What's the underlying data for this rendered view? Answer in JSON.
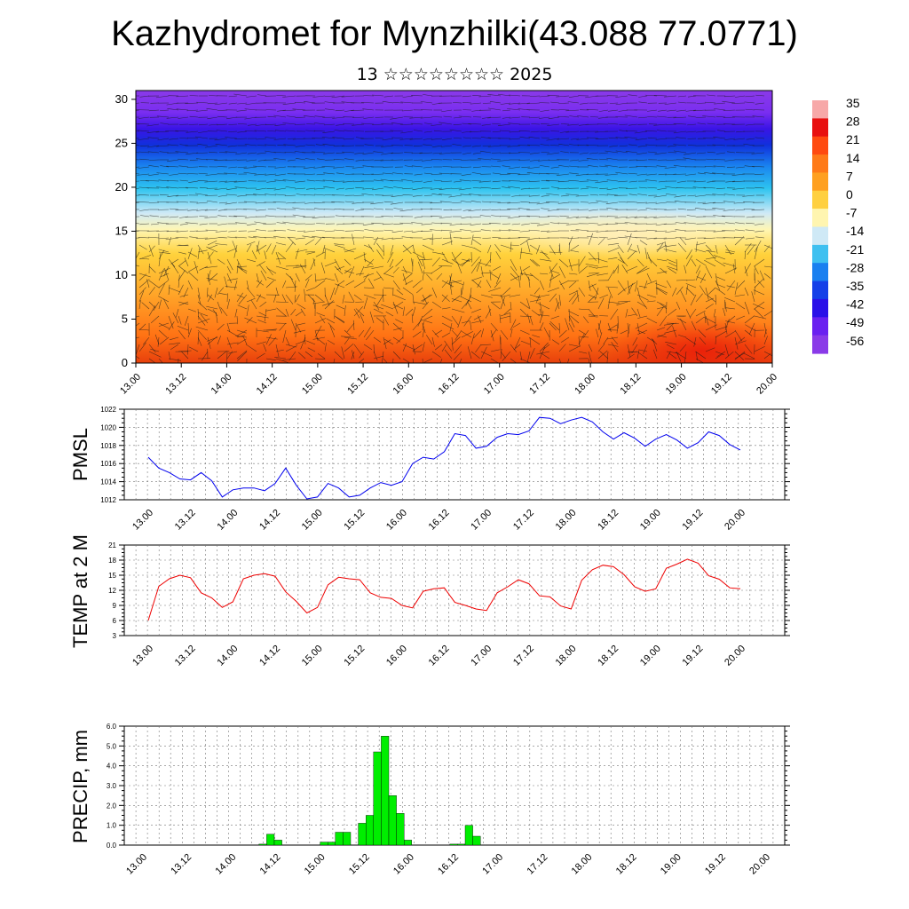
{
  "title": "Kazhydromet for Mynzhilki(43.088 77.0771)",
  "subtitle": "13 ☆☆☆☆☆☆☆☆ 2025",
  "chart_data": [
    {
      "type": "heatmap",
      "y_ticks": [
        "0",
        "5",
        "10",
        "15",
        "20",
        "25",
        "30"
      ],
      "ylim": [
        0,
        31
      ],
      "x_ticks": [
        "13.00",
        "13.12",
        "14.00",
        "14.12",
        "15.00",
        "15.12",
        "16.00",
        "16.12",
        "17.00",
        "17.12",
        "18.00",
        "18.12",
        "19.00",
        "19.12",
        "20.00"
      ],
      "colorbar_labels": [
        "35",
        "28",
        "21",
        "14",
        "7",
        "0",
        "-7",
        "-14",
        "-21",
        "-28",
        "-35",
        "-42",
        "-49",
        "-56"
      ],
      "colorbar_colors": [
        "#f7a8a8",
        "#e81010",
        "#ff4a10",
        "#ff7a18",
        "#ffa020",
        "#ffd040",
        "#fff5b0",
        "#cfe9f6",
        "#3fc0f0",
        "#1a80f0",
        "#1540e8",
        "#2a10e8",
        "#6a20f0",
        "#8a3ae8"
      ],
      "overlay": "wind barbs"
    },
    {
      "type": "line",
      "ylabel": "PMSL",
      "color": "#0000ee",
      "y_ticks": [
        "1012",
        "1014",
        "1016",
        "1018",
        "1020",
        "1022"
      ],
      "ylim": [
        1012,
        1022
      ],
      "x_ticks": [
        "13.00",
        "13.12",
        "14.00",
        "14.12",
        "15.00",
        "15.12",
        "16.00",
        "16.12",
        "17.00",
        "17.12",
        "18.00",
        "18.12",
        "19.00",
        "19.12",
        "20.00"
      ],
      "values": [
        1016.7,
        1015.5,
        1015.0,
        1014.3,
        1014.2,
        1015.0,
        1014.1,
        1012.3,
        1013.1,
        1013.3,
        1013.3,
        1013.0,
        1013.8,
        1015.5,
        1013.6,
        1012.1,
        1012.3,
        1013.8,
        1013.3,
        1012.3,
        1012.5,
        1013.3,
        1013.9,
        1013.6,
        1014.0,
        1016.0,
        1016.7,
        1016.5,
        1017.3,
        1019.3,
        1019.1,
        1017.7,
        1017.9,
        1018.9,
        1019.3,
        1019.2,
        1019.6,
        1021.1,
        1021.0,
        1020.4,
        1020.8,
        1021.1,
        1020.6,
        1019.5,
        1018.7,
        1019.4,
        1018.8,
        1017.9,
        1018.7,
        1019.2,
        1018.6,
        1017.7,
        1018.3,
        1019.5,
        1019.1,
        1018.1,
        1017.5
      ]
    },
    {
      "type": "line",
      "ylabel": "TEMP at 2 M",
      "color": "#ee0000",
      "y_ticks": [
        "3",
        "6",
        "9",
        "12",
        "15",
        "18",
        "21"
      ],
      "ylim": [
        3,
        21
      ],
      "x_ticks": [
        "13.00",
        "13.12",
        "14.00",
        "14.12",
        "15.00",
        "15.12",
        "16.00",
        "16.12",
        "17.00",
        "17.12",
        "18.00",
        "18.12",
        "19.00",
        "19.12",
        "20.00"
      ],
      "values": [
        6.0,
        12.8,
        14.3,
        15.0,
        14.5,
        11.5,
        10.5,
        8.6,
        9.7,
        14.3,
        15.0,
        15.3,
        14.8,
        11.7,
        9.8,
        7.5,
        8.6,
        13.1,
        14.6,
        14.3,
        14.1,
        11.5,
        10.6,
        10.4,
        9.0,
        8.5,
        11.8,
        12.3,
        12.5,
        9.6,
        9.0,
        8.3,
        8.0,
        11.5,
        12.7,
        14.1,
        13.3,
        10.9,
        10.7,
        8.9,
        8.3,
        14.0,
        16.1,
        17.0,
        16.7,
        15.1,
        12.7,
        11.8,
        12.3,
        16.4,
        17.2,
        18.2,
        17.4,
        14.9,
        14.2,
        12.5,
        12.3
      ]
    },
    {
      "type": "bar",
      "ylabel": "PRECIP, mm",
      "color": "#00ee00",
      "y_ticks": [
        "0.0",
        "1.0",
        "2.0",
        "3.0",
        "4.0",
        "5.0",
        "6.0"
      ],
      "ylim": [
        0,
        6
      ],
      "x_ticks": [
        "13.00",
        "13.12",
        "14.00",
        "14.12",
        "15.00",
        "15.12",
        "16.00",
        "16.12",
        "17.00",
        "17.12",
        "18.00",
        "18.12",
        "19.00",
        "19.12",
        "20.00"
      ],
      "values": [
        0,
        0,
        0,
        0,
        0,
        0,
        0,
        0,
        0,
        0,
        0,
        0,
        0,
        0,
        0,
        0,
        0,
        0.05,
        0.55,
        0.25,
        0,
        0,
        0,
        0,
        0,
        0.15,
        0.15,
        0.65,
        0.65,
        0,
        1.1,
        1.5,
        4.7,
        5.5,
        2.5,
        1.6,
        0.25,
        0,
        0,
        0,
        0,
        0,
        0.05,
        0.05,
        1.0,
        0.45,
        0,
        0,
        0,
        0,
        0,
        0,
        0,
        0,
        0,
        0,
        0,
        0,
        0,
        0,
        0,
        0,
        0,
        0,
        0,
        0,
        0,
        0,
        0,
        0,
        0,
        0,
        0,
        0,
        0,
        0,
        0,
        0,
        0,
        0,
        0,
        0,
        0,
        0,
        0
      ]
    }
  ]
}
